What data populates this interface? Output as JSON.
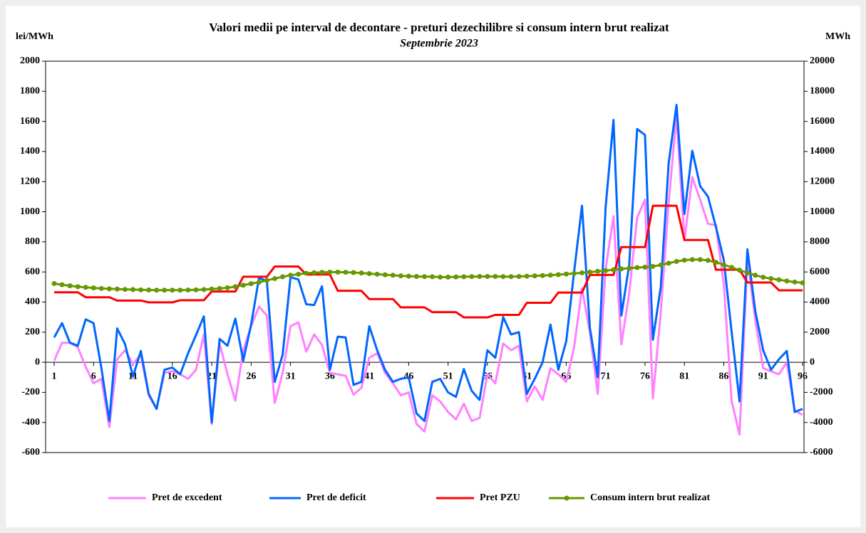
{
  "chart_data": {
    "type": "line",
    "title": "Valori medii pe interval de decontare - preturi dezechilibre si consum intern brut realizat",
    "subtitle": "Septembrie 2023",
    "y_label": "lei/MWh",
    "y2_label": "MWh",
    "x": [
      1,
      2,
      3,
      4,
      5,
      6,
      7,
      8,
      9,
      10,
      11,
      12,
      13,
      14,
      15,
      16,
      17,
      18,
      19,
      20,
      21,
      22,
      23,
      24,
      25,
      26,
      27,
      28,
      29,
      30,
      31,
      32,
      33,
      34,
      35,
      36,
      37,
      38,
      39,
      40,
      41,
      42,
      43,
      44,
      45,
      46,
      47,
      48,
      49,
      50,
      51,
      52,
      53,
      54,
      55,
      56,
      57,
      58,
      59,
      60,
      61,
      62,
      63,
      64,
      65,
      66,
      67,
      68,
      69,
      70,
      71,
      72,
      73,
      74,
      75,
      76,
      77,
      78,
      79,
      80,
      81,
      82,
      83,
      84,
      85,
      86,
      87,
      88,
      89,
      90,
      91,
      92,
      93,
      94,
      95,
      96
    ],
    "xlim": [
      1,
      96
    ],
    "xticks": [
      1,
      6,
      11,
      16,
      21,
      26,
      31,
      36,
      41,
      46,
      51,
      56,
      61,
      66,
      71,
      76,
      81,
      86,
      91,
      96
    ],
    "ylim": [
      -600,
      2000
    ],
    "yticks": [
      -600,
      -400,
      -200,
      0,
      200,
      400,
      600,
      800,
      1000,
      1200,
      1400,
      1600,
      1800,
      2000
    ],
    "y2lim": [
      -6000,
      20000
    ],
    "y2ticks": [
      -6000,
      -4000,
      -2000,
      0,
      2000,
      4000,
      6000,
      8000,
      10000,
      12000,
      14000,
      16000,
      18000,
      20000
    ],
    "series": [
      {
        "name": "Pret de excedent",
        "color": "#ff80ff",
        "values": [
          10,
          130,
          130,
          100,
          -30,
          -140,
          -110,
          -430,
          20,
          80,
          -10,
          50,
          -220,
          -310,
          -70,
          -60,
          -80,
          -110,
          -50,
          185,
          -410,
          125,
          -80,
          -255,
          80,
          240,
          370,
          310,
          -270,
          -70,
          240,
          265,
          70,
          185,
          115,
          -70,
          -80,
          -90,
          -215,
          -170,
          30,
          60,
          -70,
          -140,
          -220,
          -200,
          -410,
          -460,
          -220,
          -260,
          -330,
          -380,
          -275,
          -390,
          -370,
          -80,
          -140,
          125,
          80,
          110,
          -260,
          -160,
          -250,
          -40,
          -80,
          -130,
          100,
          490,
          200,
          -210,
          620,
          970,
          120,
          460,
          960,
          1080,
          -240,
          330,
          1060,
          1640,
          810,
          1230,
          1080,
          920,
          910,
          520,
          -260,
          -480,
          690,
          280,
          -40,
          -60,
          -80,
          0,
          -320,
          -350
        ]
      },
      {
        "name": "Pret de deficit",
        "color": "#0066ff",
        "values": [
          165,
          260,
          130,
          110,
          285,
          260,
          -40,
          -390,
          225,
          120,
          -95,
          75,
          -210,
          -310,
          -50,
          -35,
          -80,
          60,
          180,
          305,
          -400,
          155,
          110,
          290,
          10,
          250,
          560,
          540,
          -130,
          50,
          565,
          550,
          385,
          380,
          505,
          -50,
          170,
          165,
          -150,
          -130,
          240,
          80,
          -50,
          -130,
          -110,
          -100,
          -340,
          -390,
          -130,
          -110,
          -200,
          -230,
          -45,
          -190,
          -250,
          80,
          30,
          300,
          185,
          200,
          -210,
          -110,
          0,
          250,
          -50,
          140,
          600,
          1040,
          230,
          -100,
          1030,
          1610,
          310,
          650,
          1550,
          1510,
          150,
          500,
          1320,
          1710,
          985,
          1405,
          1170,
          1100,
          900,
          680,
          200,
          -260,
          750,
          340,
          80,
          -50,
          20,
          75,
          -330,
          -310
        ]
      },
      {
        "name": "Pret PZU",
        "color": "#ff0000",
        "values": [
          465,
          465,
          465,
          465,
          432,
          432,
          432,
          432,
          410,
          410,
          410,
          410,
          398,
          398,
          398,
          398,
          412,
          412,
          412,
          412,
          470,
          470,
          470,
          470,
          568,
          568,
          568,
          568,
          636,
          636,
          636,
          636,
          583,
          583,
          583,
          583,
          475,
          475,
          475,
          475,
          420,
          420,
          420,
          420,
          365,
          365,
          365,
          365,
          333,
          333,
          333,
          333,
          298,
          298,
          298,
          298,
          315,
          315,
          315,
          315,
          395,
          395,
          395,
          395,
          463,
          463,
          463,
          463,
          580,
          580,
          580,
          580,
          765,
          765,
          765,
          765,
          1040,
          1040,
          1040,
          1040,
          812,
          812,
          812,
          812,
          615,
          615,
          615,
          615,
          530,
          530,
          530,
          530,
          478,
          478,
          478,
          478
        ]
      },
      {
        "name": "Consum intern brut realizat",
        "color": "#669900",
        "axis": "y2",
        "markers": true,
        "values": [
          5230,
          5150,
          5080,
          5020,
          4980,
          4940,
          4900,
          4880,
          4860,
          4840,
          4830,
          4810,
          4800,
          4790,
          4790,
          4790,
          4790,
          4800,
          4810,
          4830,
          4860,
          4900,
          4950,
          5020,
          5120,
          5220,
          5320,
          5440,
          5560,
          5680,
          5780,
          5850,
          5910,
          5950,
          5980,
          5990,
          5990,
          5980,
          5960,
          5930,
          5890,
          5850,
          5810,
          5780,
          5740,
          5720,
          5700,
          5690,
          5680,
          5660,
          5660,
          5670,
          5680,
          5690,
          5700,
          5700,
          5700,
          5690,
          5690,
          5700,
          5720,
          5740,
          5760,
          5790,
          5820,
          5860,
          5900,
          5940,
          5990,
          6040,
          6090,
          6140,
          6200,
          6250,
          6290,
          6320,
          6370,
          6460,
          6580,
          6700,
          6780,
          6820,
          6820,
          6770,
          6640,
          6480,
          6300,
          6120,
          5950,
          5780,
          5650,
          5560,
          5480,
          5400,
          5330,
          5280
        ]
      }
    ],
    "legend": "bottom"
  }
}
